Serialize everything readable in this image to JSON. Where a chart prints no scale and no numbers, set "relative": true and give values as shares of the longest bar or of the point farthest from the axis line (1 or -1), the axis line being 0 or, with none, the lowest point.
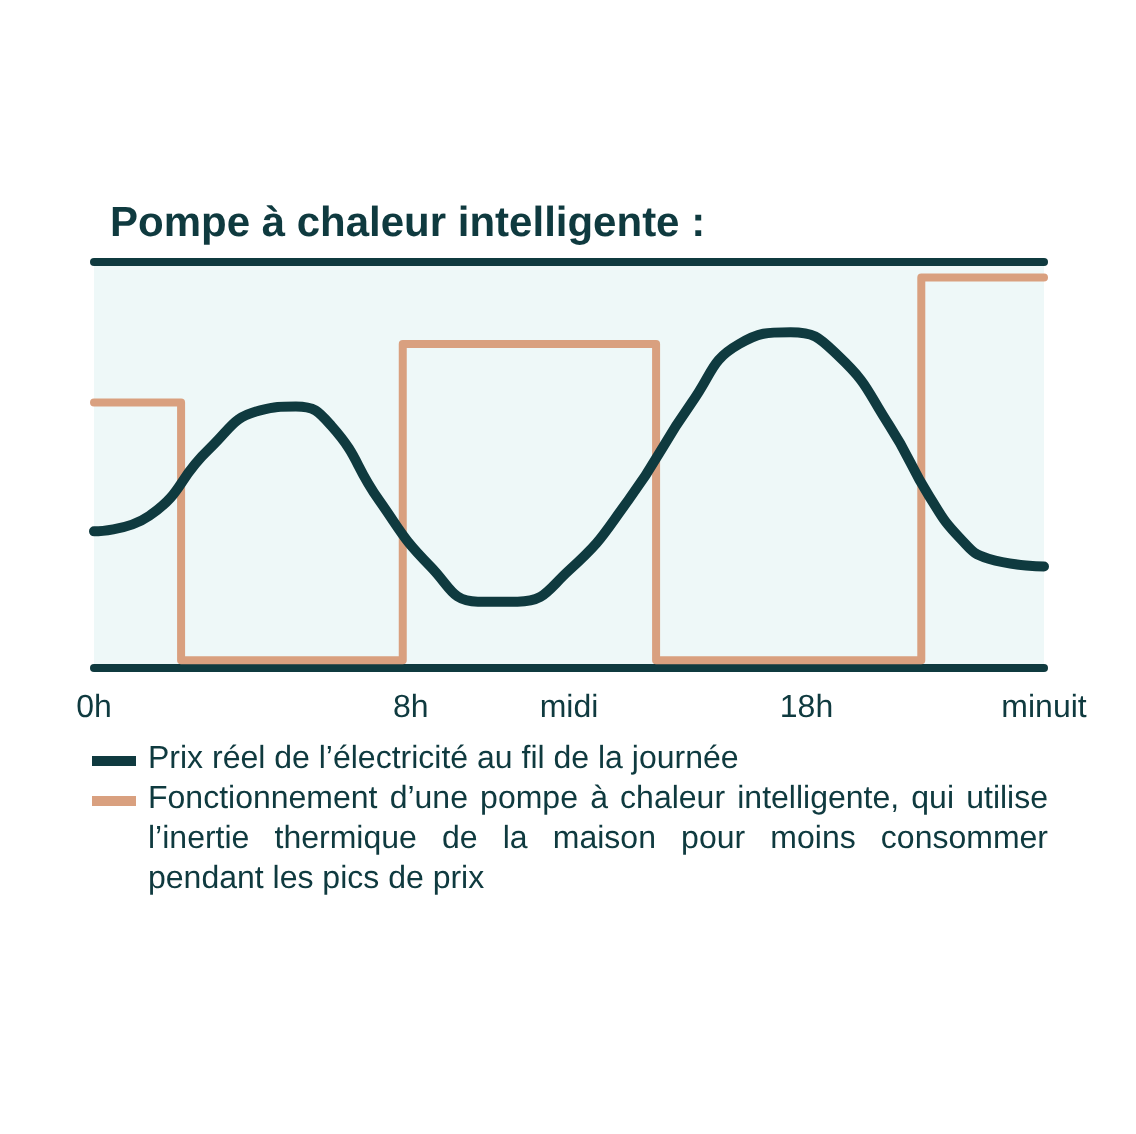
{
  "chart_data": {
    "type": "line",
    "title": "Pompe à chaleur intelligente :",
    "relative": true,
    "legend": "bottom",
    "grid": false,
    "xlim": [
      0,
      24
    ],
    "xticks": [
      {
        "value": 0,
        "label": "0h"
      },
      {
        "value": 8,
        "label": "8h"
      },
      {
        "value": 12,
        "label": "midi"
      },
      {
        "value": 18,
        "label": "18h"
      },
      {
        "value": 24,
        "label": "minuit"
      }
    ],
    "series": [
      {
        "name": "Prix réel de l’électricité au fil de la journée",
        "type": "line",
        "color": "#0f3a3f",
        "x": [
          0,
          1.4,
          2.9,
          4.2,
          5.1,
          6.0,
          7.2,
          8.5,
          9.7,
          10.7,
          12.0,
          13.5,
          15.1,
          16.3,
          17.6,
          18.8,
          20.1,
          21.1,
          21.9,
          22.6,
          24
        ],
        "values": [
          0.35,
          0.39,
          0.56,
          0.66,
          0.67,
          0.62,
          0.43,
          0.26,
          0.17,
          0.17,
          0.25,
          0.43,
          0.68,
          0.83,
          0.86,
          0.8,
          0.62,
          0.44,
          0.33,
          0.28,
          0.26
        ]
      },
      {
        "name": "Fonctionnement d’une pompe à chaleur intelligente, qui utilise l’inertie thermique de la maison pour moins consommer pendant les pics de prix",
        "type": "step",
        "color": "#d9a07f",
        "x": [
          0,
          2.2,
          7.8,
          14.2,
          20.9,
          24
        ],
        "values": [
          0.68,
          0.02,
          0.83,
          0.02,
          1.0,
          1.0
        ]
      }
    ]
  }
}
